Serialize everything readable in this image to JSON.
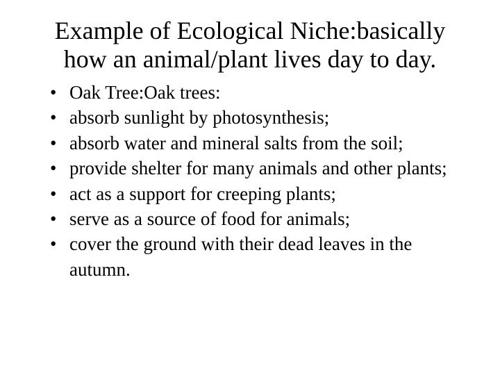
{
  "title": "Example of Ecological Niche:basically how an animal/plant lives day to day.",
  "bullets": [
    "Oak Tree:Oak trees:",
    "absorb sunlight by photosynthesis;",
    "absorb water and mineral salts from the soil;",
    "provide shelter for many animals and other plants;",
    "act as a support for creeping plants;",
    "serve as a source of food for animals;",
    "cover the ground with their dead leaves in the autumn."
  ],
  "colors": {
    "background": "#ffffff",
    "text": "#000000"
  },
  "typography": {
    "title_fontsize": 36,
    "body_fontsize": 27,
    "font_family": "Times New Roman"
  }
}
